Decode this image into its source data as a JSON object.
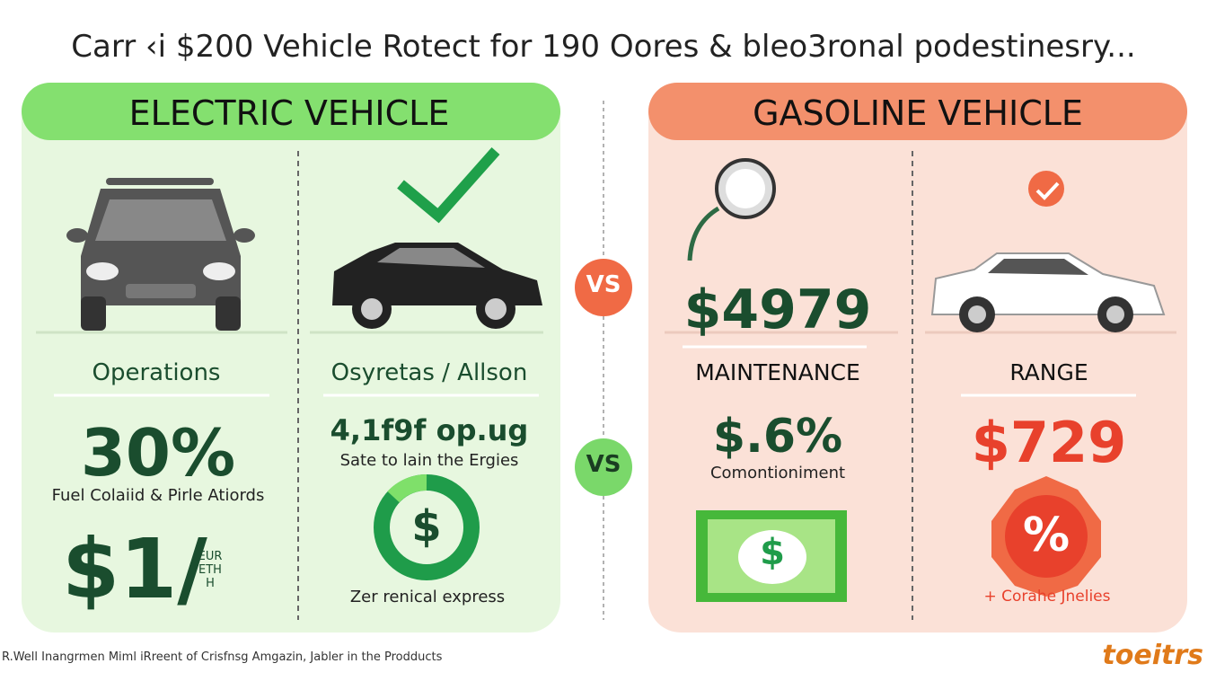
{
  "header": {
    "title": "Carr ‹i $200 Vehicle Rotect for 190 Oores & bleo3ronal podestinesry..."
  },
  "vs_labels": [
    "VS",
    "VS"
  ],
  "electric": {
    "title": "ELECTRIC VEHICLE",
    "columns": [
      {
        "heading": "Operations",
        "stat": "30%",
        "caption": "Fuel Colaiid & Pirle Atiords",
        "big_stat": "$1/",
        "small_note": "EUR ETH H"
      },
      {
        "heading": "Osyretas / Allson",
        "stat": "4,1f9f op.ug",
        "caption": "Sate to lain the Ergies",
        "icon_symbol": "$",
        "footer": "Zer renical express"
      }
    ]
  },
  "gasoline": {
    "title": "GASOLINE VEHICLE",
    "columns": [
      {
        "price": "$4979",
        "heading": "MAINTENANCE",
        "stat": "$.6%",
        "caption": "Comontioniment",
        "icon_symbol": "$"
      },
      {
        "heading": "RANGE",
        "stat": "$729",
        "icon_symbol": "%",
        "footer": "+ Corahe Jnelies"
      }
    ]
  },
  "footer": {
    "credit": "R.Well Inangrmen Miml iRreent of Crisfnsg Amgazin, Jabler in the Prodducts",
    "logo": "toeitrs"
  }
}
